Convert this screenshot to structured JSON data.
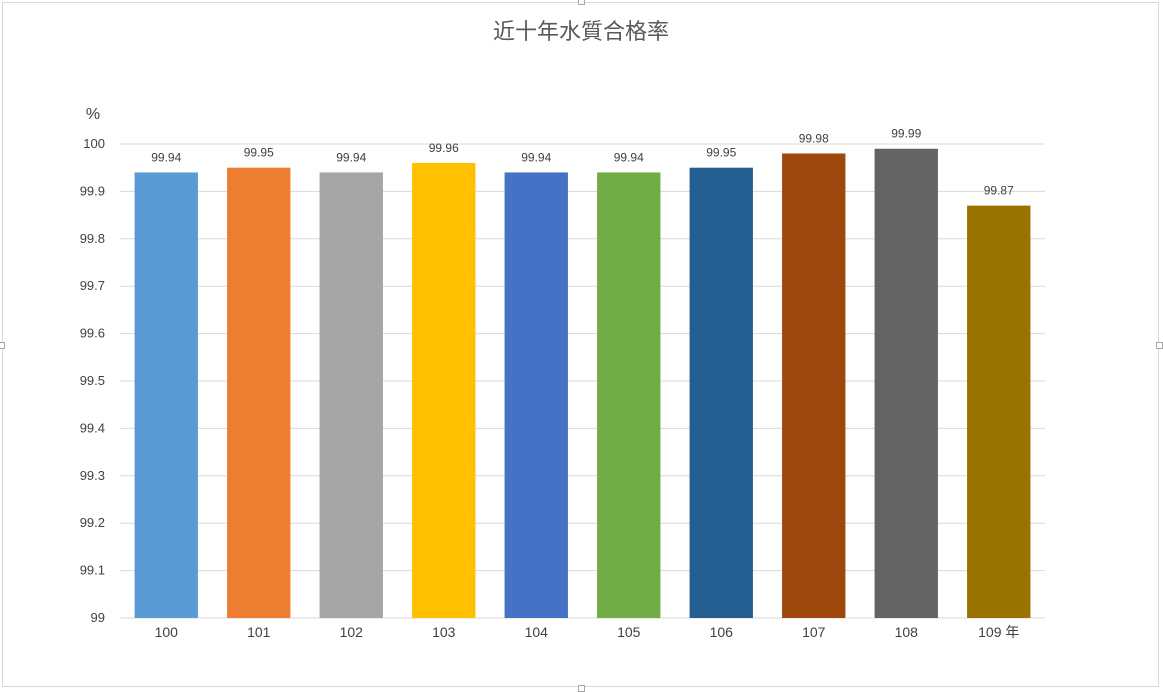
{
  "chart_data": {
    "type": "bar",
    "title": "近十年水質合格率",
    "ylabel": "%",
    "xlabel": "",
    "ylim": [
      99,
      100
    ],
    "yticks": [
      "99",
      "99.1",
      "99.2",
      "99.3",
      "99.4",
      "99.5",
      "99.6",
      "99.7",
      "99.8",
      "99.9",
      "100"
    ],
    "categories": [
      "100",
      "101",
      "102",
      "103",
      "104",
      "105",
      "106",
      "107",
      "108",
      "109 年"
    ],
    "values": [
      99.94,
      99.95,
      99.94,
      99.96,
      99.94,
      99.94,
      99.95,
      99.98,
      99.99,
      99.87
    ],
    "value_labels": [
      "99.94",
      "99.95",
      "99.94",
      "99.96",
      "99.94",
      "99.94",
      "99.95",
      "99.98",
      "99.99",
      "99.87"
    ],
    "colors": [
      "#5B9BD5",
      "#ED7D31",
      "#A5A5A5",
      "#FFC000",
      "#4472C4",
      "#70AD47",
      "#255E91",
      "#9E480E",
      "#636363",
      "#997300"
    ],
    "grid": true,
    "legend": "none",
    "gridline_color": "#d9d9d9"
  }
}
